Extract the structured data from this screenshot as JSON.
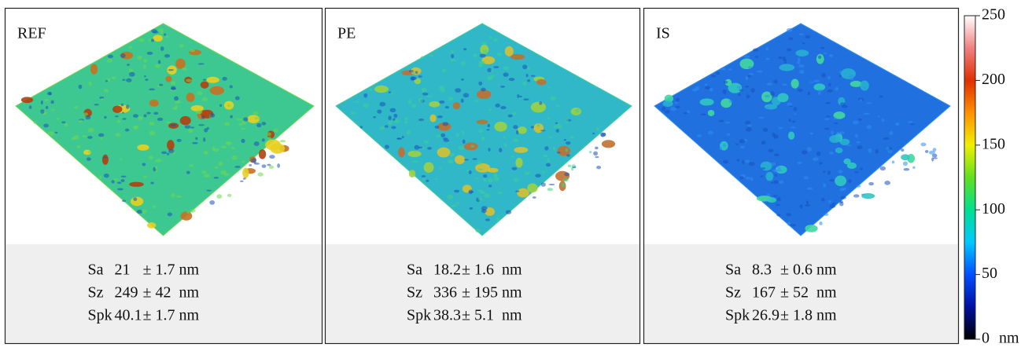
{
  "panels": [
    {
      "label": "REF",
      "rows": [
        {
          "param": "Sa",
          "value": "21",
          "error": "± 1.7 nm"
        },
        {
          "param": "Sz",
          "value": "249",
          "error": "± 42  nm"
        },
        {
          "param": "Spk",
          "value": "40.1",
          "error": "± 1.7 nm"
        }
      ]
    },
    {
      "label": "PE",
      "rows": [
        {
          "param": "Sa",
          "value": "18.2",
          "error": "± 1.6  nm"
        },
        {
          "param": "Sz",
          "value": "336",
          "error": "± 195 nm"
        },
        {
          "param": "Spk",
          "value": "38.3",
          "error": "± 5.1  nm"
        }
      ]
    },
    {
      "label": "IS",
      "rows": [
        {
          "param": "Sa",
          "value": "8.3",
          "error": "± 0.6 nm"
        },
        {
          "param": "Sz",
          "value": "167",
          "error": "± 52  nm"
        },
        {
          "param": "Spk",
          "value": "26.9",
          "error": "± 1.8 nm"
        }
      ]
    }
  ],
  "colorbar": {
    "lim": [
      0,
      250
    ],
    "ticks": [
      0,
      50,
      100,
      150,
      200,
      250
    ],
    "unit": "nm"
  }
}
